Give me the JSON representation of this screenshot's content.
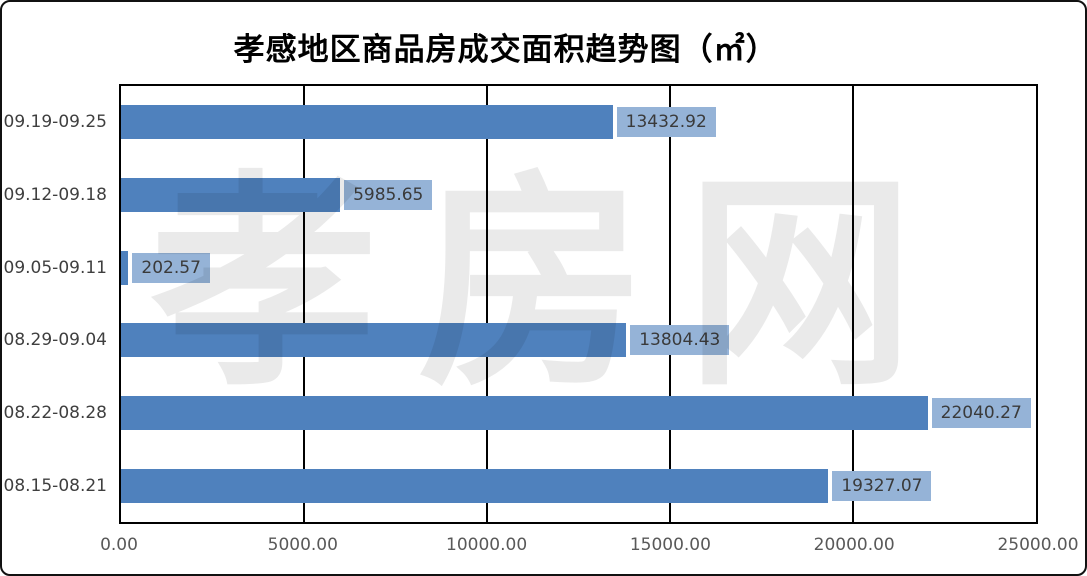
{
  "title": "孝感地区商品房成交面积趋势图（㎡）",
  "watermark": "孝房网",
  "chart_data": {
    "type": "bar",
    "orientation": "horizontal",
    "title": "孝感地区商品房成交面积趋势图（㎡）",
    "categories": [
      "09.19-09.25",
      "09.12-09.18",
      "09.05-09.11",
      "08.29-09.04",
      "08.22-08.28",
      "08.15-08.21"
    ],
    "values": [
      13432.92,
      5985.65,
      202.57,
      13804.43,
      22040.27,
      19327.07
    ],
    "value_labels": [
      "13432.92",
      "5985.65",
      "202.57",
      "13804.43",
      "22040.27",
      "19327.07"
    ],
    "xlabel": "",
    "ylabel": "",
    "xlim": [
      0,
      25000
    ],
    "x_ticks": [
      "0.00",
      "5000.00",
      "10000.00",
      "15000.00",
      "20000.00",
      "25000.00"
    ],
    "grid": true,
    "legend": false,
    "bar_color": "#4f81bd",
    "value_box_color": "#95b3d7",
    "gridline_color": "#000000"
  }
}
